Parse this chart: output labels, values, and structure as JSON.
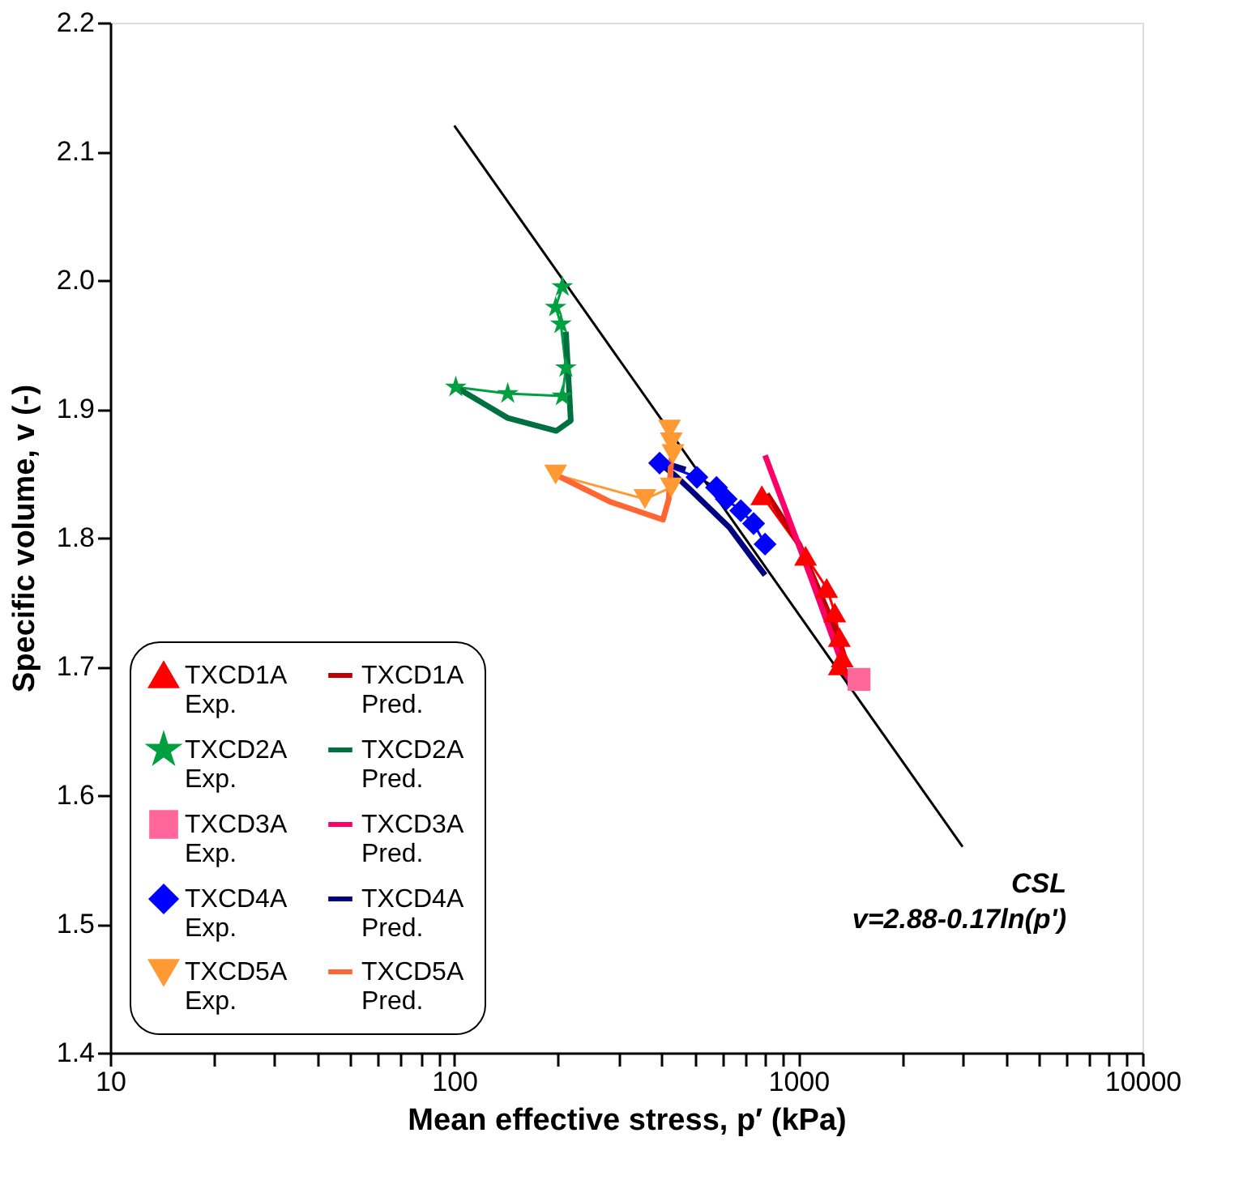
{
  "chart_data": {
    "type": "line",
    "xlabel": "Mean effective stress, p′ (kPa)",
    "ylabel": "Specific volume, v (-)",
    "log": "x",
    "xlim": [
      10,
      10000
    ],
    "ylim": [
      1.4,
      2.2
    ],
    "xticks": [
      10,
      {
        "value": 20,
        "label": null
      },
      {
        "value": 30,
        "label": null
      },
      {
        "value": 40,
        "label": null
      },
      {
        "value": 50,
        "label": null
      },
      {
        "value": 60,
        "label": null
      },
      {
        "value": 70,
        "label": null
      },
      {
        "value": 80,
        "label": null
      },
      {
        "value": 90,
        "label": null
      },
      100,
      {
        "value": 200,
        "label": null
      },
      {
        "value": 300,
        "label": null
      },
      {
        "value": 400,
        "label": null
      },
      {
        "value": 500,
        "label": null
      },
      {
        "value": 600,
        "label": null
      },
      {
        "value": 700,
        "label": null
      },
      {
        "value": 800,
        "label": null
      },
      {
        "value": 900,
        "label": null
      },
      1000,
      {
        "value": 2000,
        "label": null
      },
      {
        "value": 3000,
        "label": null
      },
      {
        "value": 4000,
        "label": null
      },
      {
        "value": 5000,
        "label": null
      },
      {
        "value": 6000,
        "label": null
      },
      {
        "value": 7000,
        "label": null
      },
      {
        "value": 8000,
        "label": null
      },
      {
        "value": 9000,
        "label": null
      },
      10000
    ],
    "yticks": [
      {
        "value": 1.4,
        "label": "1.4"
      },
      {
        "value": 1.5,
        "label": "1.5"
      },
      {
        "value": 1.6,
        "label": "1.6"
      },
      {
        "value": 1.7,
        "label": "1.7"
      },
      {
        "value": 1.8,
        "label": "1.8"
      },
      {
        "value": 1.9,
        "label": "1.9"
      },
      {
        "value": 2.0,
        "label": "2.0"
      },
      {
        "value": 2.1,
        "label": "2.1"
      },
      {
        "value": 2.2,
        "label": "2.2"
      }
    ],
    "grid": false,
    "legend": "bottom left",
    "annotations": [
      "CSL",
      "v=2.88-0.17ln(p')"
    ],
    "series": [
      {
        "name": "TXCD1A Exp.",
        "color": "#ff0000",
        "marker": "triangle",
        "x": [
          783,
          1049,
          1208,
          1275,
          1315,
          1340,
          1315
        ],
        "values": [
          1.833,
          1.786,
          1.761,
          1.742,
          1.723,
          1.707,
          1.701
        ]
      },
      {
        "name": "TXCD1A Pred.",
        "color": "#c00000",
        "marker": "none",
        "x": [
          810,
          1005,
          1290,
          1380
        ],
        "values": [
          1.834,
          1.795,
          1.727,
          1.702
        ]
      },
      {
        "name": "TXCD2A Exp.",
        "color": "#00a040",
        "marker": "star",
        "x": [
          206,
          197,
          204,
          211,
          206,
          143,
          101
        ],
        "values": [
          1.995,
          1.979,
          1.966,
          1.932,
          1.91,
          1.912,
          1.917
        ]
      },
      {
        "name": "TXCD2A Pred.",
        "color": "#007040",
        "marker": "none",
        "x": [
          211,
          218,
          198,
          143,
          101
        ],
        "values": [
          1.96,
          1.891,
          1.883,
          1.893,
          1.917
        ]
      },
      {
        "name": "TXCD3A Exp.",
        "color": "#ff6699",
        "marker": "square",
        "x": [
          1500
        ],
        "values": [
          1.69
        ]
      },
      {
        "name": "TXCD3A Pred.",
        "color": "#ff0066",
        "marker": "none",
        "x": [
          800,
          1084,
          1422
        ],
        "values": [
          1.864,
          1.77,
          1.683
        ]
      },
      {
        "name": "TXCD4A Exp.",
        "color": "#0000ff",
        "marker": "diamond",
        "x": [
          395,
          507,
          578,
          617,
          680,
          741,
          800
        ],
        "values": [
          1.858,
          1.847,
          1.839,
          1.83,
          1.821,
          1.811,
          1.795
        ]
      },
      {
        "name": "TXCD4A Pred.",
        "color": "#000080",
        "marker": "none",
        "x": [
          470,
          420,
          395,
          440,
          491,
          630,
          730,
          800
        ],
        "values": [
          1.853,
          1.857,
          1.858,
          1.848,
          1.836,
          1.808,
          1.785,
          1.771
        ]
      },
      {
        "name": "TXCD5A Exp.",
        "color": "#ff9933",
        "marker": "triangle-down",
        "x": [
          422,
          427,
          432,
          427,
          358,
          197
        ],
        "values": [
          1.884,
          1.874,
          1.865,
          1.839,
          1.83,
          1.849
        ]
      },
      {
        "name": "TXCD5A Pred.",
        "color": "#ff6633",
        "marker": "none",
        "x": [
          427,
          420,
          404,
          330,
          283,
          197
        ],
        "values": [
          1.862,
          1.83,
          1.814,
          1.822,
          1.828,
          1.849
        ]
      },
      {
        "color": "#000000",
        "marker": "none",
        "x": [
          100,
          3000
        ],
        "values": [
          2.12,
          1.56
        ]
      }
    ]
  }
}
